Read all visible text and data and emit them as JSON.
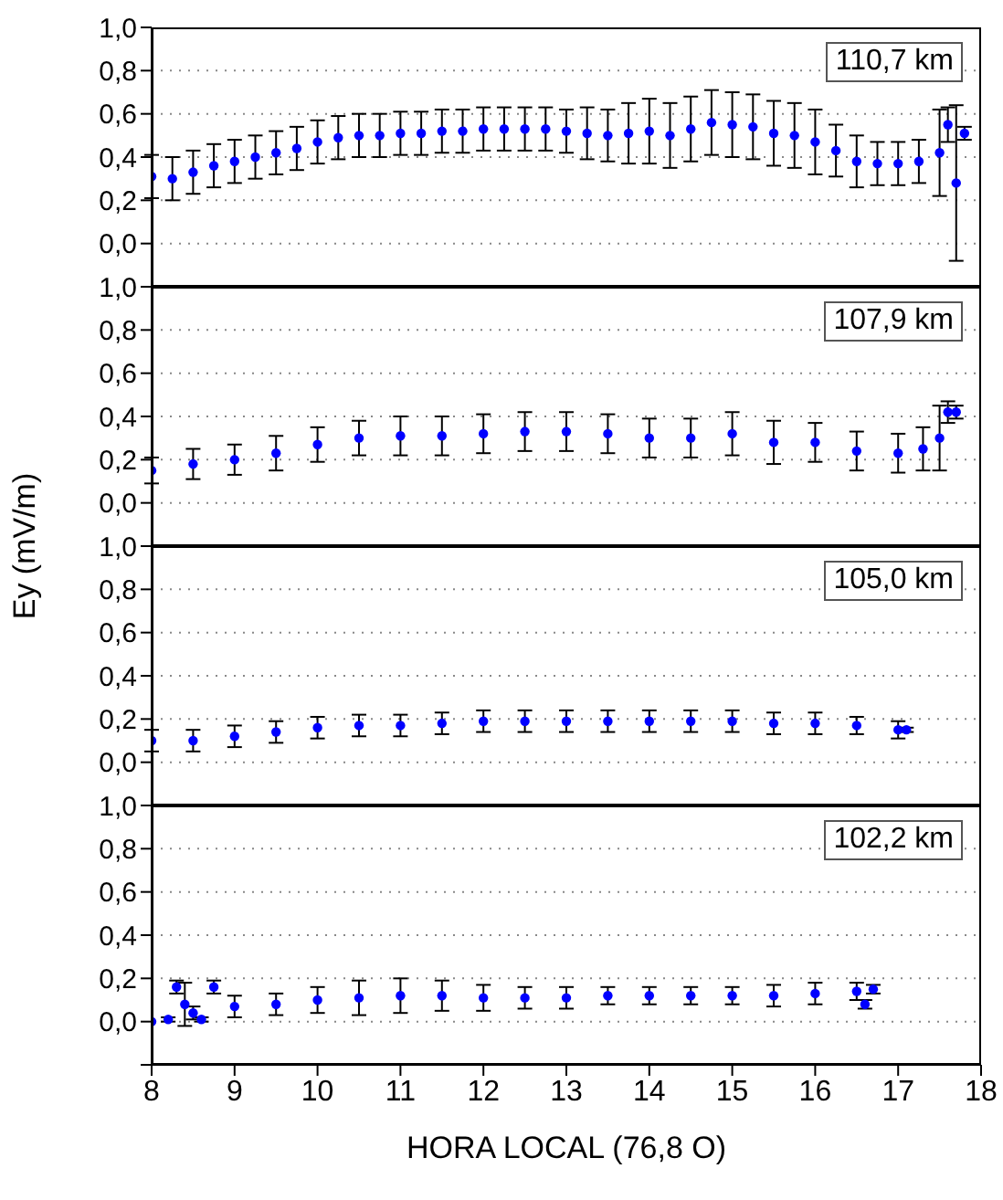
{
  "chart_data": [
    {
      "type": "scatter",
      "marker": "circle",
      "grid": "y",
      "tick_labels": "y",
      "annotations": [
        "110,7 km"
      ],
      "xlim": [
        8,
        18
      ],
      "xticks": [
        8,
        9,
        10,
        11,
        12,
        13,
        14,
        15,
        16,
        17,
        18
      ],
      "ylim": [
        -0.2,
        1.0
      ],
      "yticks": [
        {
          "value": -0.2,
          "label": null
        },
        {
          "value": 0,
          "label": "0,0"
        },
        {
          "value": 0.2,
          "label": "0,2"
        },
        {
          "value": 0.4,
          "label": "0,4"
        },
        {
          "value": 0.6,
          "label": "0,6"
        },
        {
          "value": 0.8,
          "label": "0,8"
        },
        {
          "value": 1.0,
          "label": "1,0"
        }
      ],
      "series": [
        {
          "color": "#0000ff",
          "x": [
            8.0,
            8.25,
            8.5,
            8.75,
            9.0,
            9.25,
            9.5,
            9.75,
            10.0,
            10.25,
            10.5,
            10.75,
            11.0,
            11.25,
            11.5,
            11.75,
            12.0,
            12.25,
            12.5,
            12.75,
            13.0,
            13.25,
            13.5,
            13.75,
            14.0,
            14.25,
            14.5,
            14.75,
            15.0,
            15.25,
            15.5,
            15.75,
            16.0,
            16.25,
            16.5,
            16.75,
            17.0,
            17.25,
            17.5,
            17.6,
            17.7,
            17.8
          ],
          "values": [
            0.31,
            0.3,
            0.33,
            0.36,
            0.38,
            0.4,
            0.42,
            0.44,
            0.47,
            0.49,
            0.5,
            0.5,
            0.51,
            0.51,
            0.52,
            0.52,
            0.53,
            0.53,
            0.53,
            0.53,
            0.52,
            0.51,
            0.5,
            0.51,
            0.52,
            0.5,
            0.53,
            0.56,
            0.55,
            0.54,
            0.51,
            0.5,
            0.47,
            0.43,
            0.38,
            0.37,
            0.37,
            0.38,
            0.42,
            0.55,
            0.28,
            0.51
          ],
          "errors": [
            0.1,
            0.1,
            0.1,
            0.1,
            0.1,
            0.1,
            0.1,
            0.1,
            0.1,
            0.1,
            0.1,
            0.1,
            0.1,
            0.1,
            0.1,
            0.1,
            0.1,
            0.1,
            0.1,
            0.1,
            0.1,
            0.12,
            0.12,
            0.14,
            0.15,
            0.15,
            0.15,
            0.15,
            0.15,
            0.15,
            0.15,
            0.15,
            0.15,
            0.12,
            0.12,
            0.1,
            0.1,
            0.1,
            0.2,
            0.08,
            0.36,
            0.03
          ]
        }
      ]
    },
    {
      "type": "scatter",
      "marker": "circle",
      "grid": "y",
      "tick_labels": "y",
      "ylabel": "Ey (mV/m)",
      "annotations": [
        "107,9 km"
      ],
      "xlim": [
        8,
        18
      ],
      "xticks": [
        8,
        9,
        10,
        11,
        12,
        13,
        14,
        15,
        16,
        17,
        18
      ],
      "ylim": [
        -0.2,
        1.0
      ],
      "yticks": [
        {
          "value": -0.2,
          "label": null
        },
        {
          "value": 0,
          "label": "0,0"
        },
        {
          "value": 0.2,
          "label": "0,2"
        },
        {
          "value": 0.4,
          "label": "0,4"
        },
        {
          "value": 0.6,
          "label": "0,6"
        },
        {
          "value": 0.8,
          "label": "0,8"
        },
        {
          "value": 1.0,
          "label": "1,0"
        }
      ],
      "series": [
        {
          "color": "#0000ff",
          "x": [
            8.0,
            8.5,
            9.0,
            9.5,
            10.0,
            10.5,
            11.0,
            11.5,
            12.0,
            12.5,
            13.0,
            13.5,
            14.0,
            14.5,
            15.0,
            15.5,
            16.0,
            16.5,
            17.0,
            17.3,
            17.5,
            17.6,
            17.7
          ],
          "values": [
            0.15,
            0.18,
            0.2,
            0.23,
            0.27,
            0.3,
            0.31,
            0.31,
            0.32,
            0.33,
            0.33,
            0.32,
            0.3,
            0.3,
            0.32,
            0.28,
            0.28,
            0.24,
            0.23,
            0.25,
            0.3,
            0.42,
            0.42
          ],
          "errors": [
            0.06,
            0.07,
            0.07,
            0.08,
            0.08,
            0.08,
            0.09,
            0.09,
            0.09,
            0.09,
            0.09,
            0.09,
            0.09,
            0.09,
            0.1,
            0.1,
            0.09,
            0.09,
            0.09,
            0.1,
            0.15,
            0.05,
            0.03
          ]
        }
      ]
    },
    {
      "type": "scatter",
      "marker": "circle",
      "grid": "y",
      "tick_labels": "y",
      "annotations": [
        "105,0 km"
      ],
      "xlim": [
        8,
        18
      ],
      "xticks": [
        8,
        9,
        10,
        11,
        12,
        13,
        14,
        15,
        16,
        17,
        18
      ],
      "ylim": [
        -0.2,
        1.0
      ],
      "yticks": [
        {
          "value": -0.2,
          "label": null
        },
        {
          "value": 0,
          "label": "0,0"
        },
        {
          "value": 0.2,
          "label": "0,2"
        },
        {
          "value": 0.4,
          "label": "0,4"
        },
        {
          "value": 0.6,
          "label": "0,6"
        },
        {
          "value": 0.8,
          "label": "0,8"
        },
        {
          "value": 1.0,
          "label": "1,0"
        }
      ],
      "series": [
        {
          "color": "#0000ff",
          "x": [
            8.0,
            8.5,
            9.0,
            9.5,
            10.0,
            10.5,
            11.0,
            11.5,
            12.0,
            12.5,
            13.0,
            13.5,
            14.0,
            14.5,
            15.0,
            15.5,
            16.0,
            16.5,
            17.0,
            17.1
          ],
          "values": [
            0.1,
            0.1,
            0.12,
            0.14,
            0.16,
            0.17,
            0.17,
            0.18,
            0.19,
            0.19,
            0.19,
            0.19,
            0.19,
            0.19,
            0.19,
            0.18,
            0.18,
            0.17,
            0.15,
            0.15
          ],
          "errors": [
            0.05,
            0.05,
            0.05,
            0.05,
            0.05,
            0.05,
            0.05,
            0.05,
            0.05,
            0.05,
            0.05,
            0.05,
            0.05,
            0.05,
            0.05,
            0.05,
            0.05,
            0.04,
            0.04,
            0.01
          ]
        }
      ]
    },
    {
      "type": "scatter",
      "marker": "circle",
      "grid": "y",
      "xlabel": "HORA LOCAL (76,8 O)",
      "annotations": [
        "102,2 km"
      ],
      "xlim": [
        8,
        18
      ],
      "xticks": [
        8,
        9,
        10,
        11,
        12,
        13,
        14,
        15,
        16,
        17,
        18
      ],
      "ylim": [
        -0.2,
        1.0
      ],
      "yticks": [
        {
          "value": -0.2,
          "label": null
        },
        {
          "value": 0,
          "label": "0,0"
        },
        {
          "value": 0.2,
          "label": "0,2"
        },
        {
          "value": 0.4,
          "label": "0,4"
        },
        {
          "value": 0.6,
          "label": "0,6"
        },
        {
          "value": 0.8,
          "label": "0,8"
        },
        {
          "value": 1.0,
          "label": "1,0"
        }
      ],
      "series": [
        {
          "color": "#0000ff",
          "x": [
            8.0,
            8.2,
            8.3,
            8.4,
            8.5,
            8.6,
            8.75,
            9.0,
            9.5,
            10.0,
            10.5,
            11.0,
            11.5,
            12.0,
            12.5,
            13.0,
            13.5,
            14.0,
            14.5,
            15.0,
            15.5,
            16.0,
            16.5,
            16.6,
            16.7
          ],
          "values": [
            0.0,
            0.01,
            0.16,
            0.08,
            0.04,
            0.01,
            0.16,
            0.07,
            0.08,
            0.1,
            0.11,
            0.12,
            0.12,
            0.11,
            0.11,
            0.11,
            0.12,
            0.12,
            0.12,
            0.12,
            0.12,
            0.13,
            0.14,
            0.08,
            0.15
          ],
          "errors": [
            0.0,
            0.01,
            0.03,
            0.1,
            0.03,
            0.01,
            0.03,
            0.05,
            0.05,
            0.06,
            0.08,
            0.08,
            0.07,
            0.06,
            0.05,
            0.05,
            0.04,
            0.04,
            0.04,
            0.04,
            0.05,
            0.05,
            0.04,
            0.02,
            0.02
          ]
        }
      ]
    }
  ]
}
